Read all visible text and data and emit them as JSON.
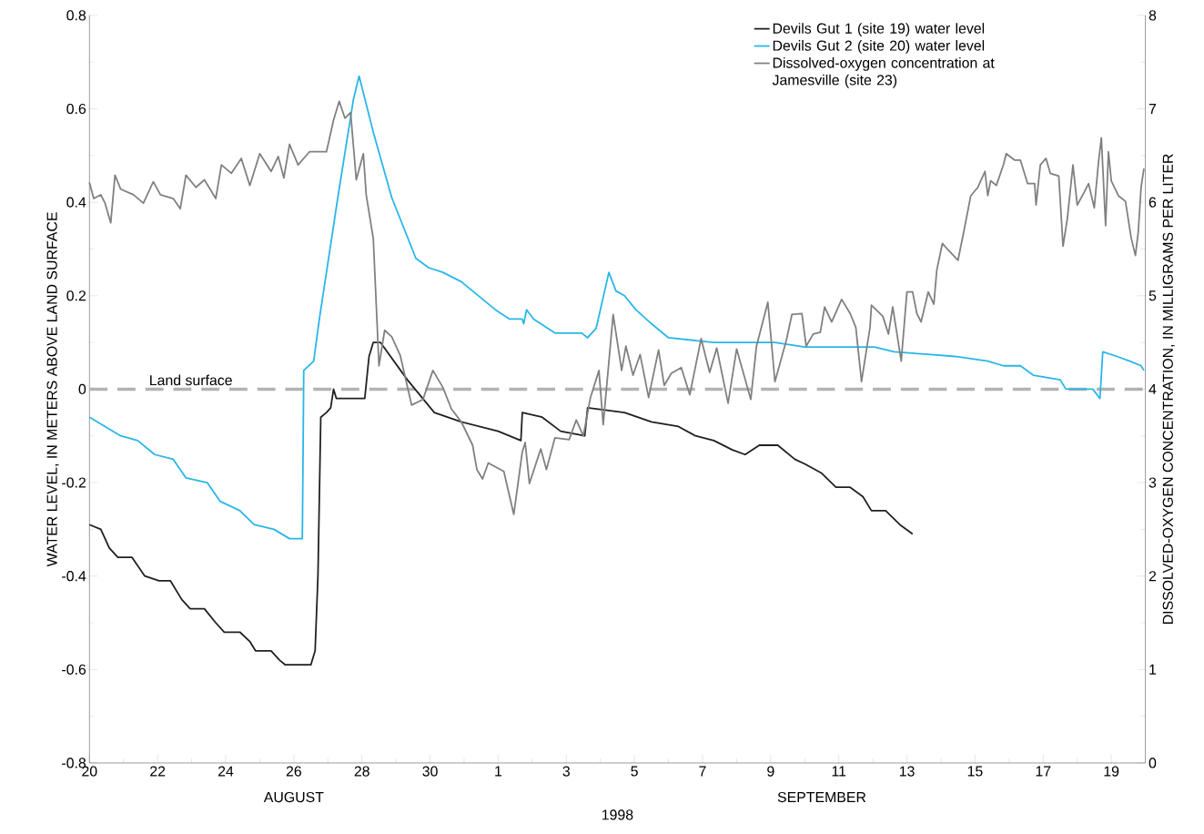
{
  "chart_data": {
    "type": "line",
    "xlabel": "1998",
    "ylabel": "WATER LEVEL, IN METERS ABOVE LAND SURFACE",
    "y2label": "DISSOLVED-OXYGEN CONCENTRATION, IN MILLIGRAMS PER LITER",
    "annotations": [
      "AUGUST",
      "SEPTEMBER"
    ],
    "xlim": [
      "1998-08-20",
      "1998-09-20"
    ],
    "xticks": [
      {
        "value": "1998-08-20",
        "label": "20"
      },
      {
        "value": "1998-08-22",
        "label": "22"
      },
      {
        "value": "1998-08-24",
        "label": "24"
      },
      {
        "value": "1998-08-26",
        "label": "26"
      },
      {
        "value": "1998-08-28",
        "label": "28"
      },
      {
        "value": "1998-08-30",
        "label": "30"
      },
      {
        "value": "1998-09-01",
        "label": "1"
      },
      {
        "value": "1998-09-03",
        "label": "3"
      },
      {
        "value": "1998-09-05",
        "label": "5"
      },
      {
        "value": "1998-09-07",
        "label": "7"
      },
      {
        "value": "1998-09-09",
        "label": "9"
      },
      {
        "value": "1998-09-11",
        "label": "11"
      },
      {
        "value": "1998-09-13",
        "label": "13"
      },
      {
        "value": "1998-09-15",
        "label": "15"
      },
      {
        "value": "1998-09-17",
        "label": "17"
      },
      {
        "value": "1998-09-19",
        "label": "19"
      }
    ],
    "ylim": [
      -0.8,
      0.8
    ],
    "yticks": [
      -0.8,
      -0.6,
      -0.4,
      -0.2,
      0,
      0.2,
      0.4,
      0.6,
      0.8
    ],
    "y2lim": [
      0,
      8
    ],
    "y2ticks": [
      0,
      1,
      2,
      3,
      4,
      5,
      6,
      7,
      8
    ],
    "legend": "top right",
    "marker": "none",
    "line_style": "solid",
    "ref_lines": [
      {
        "axis": "y",
        "value": 0,
        "label": "Land surface",
        "color": "#b3b3b3",
        "line_style": "dashed"
      }
    ],
    "series": [
      {
        "name": "Devils Gut 1 (site 19) water level",
        "color": "#231f20",
        "x": [
          "1998-08-20T00:00",
          "1998-08-20T08:00",
          "1998-08-20T14:00",
          "1998-08-20T20:00",
          "1998-08-21T06:00",
          "1998-08-21T15:00",
          "1998-08-22T01:00",
          "1998-08-22T09:00",
          "1998-08-22T17:00",
          "1998-08-22T23:00",
          "1998-08-23T09:00",
          "1998-08-23T17:00",
          "1998-08-23T23:00",
          "1998-08-24T10:00",
          "1998-08-24T17:00",
          "1998-08-24T21:00",
          "1998-08-25T08:00",
          "1998-08-25T14:00",
          "1998-08-25T18:00",
          "1998-08-26T07:00",
          "1998-08-26T12:00",
          "1998-08-26T15:00",
          "1998-08-26T17:00",
          "1998-08-26T19:00",
          "1998-08-26T23:00",
          "1998-08-27T02:00",
          "1998-08-27T04:00",
          "1998-08-27T06:00",
          "1998-08-27T18:00",
          "1998-08-28T02:00",
          "1998-08-28T05:00",
          "1998-08-28T08:00",
          "1998-08-28T13:00",
          "1998-08-29T08:00",
          "1998-08-30T03:00",
          "1998-08-30T22:00",
          "1998-08-31T11:00",
          "1998-09-01T00:00",
          "1998-09-01T16:00",
          "1998-09-01T17:00",
          "1998-09-02T07:00",
          "1998-09-02T20:00",
          "1998-09-03T13:00",
          "1998-09-03T15:00",
          "1998-09-04T17:00",
          "1998-09-05T12:00",
          "1998-09-06T07:00",
          "1998-09-06T19:00",
          "1998-09-07T08:00",
          "1998-09-07T21:00",
          "1998-09-08T06:00",
          "1998-09-08T16:00",
          "1998-09-09T05:00",
          "1998-09-09T17:00",
          "1998-09-10T00:00",
          "1998-09-10T12:00",
          "1998-09-10T22:00",
          "1998-09-11T08:00",
          "1998-09-11T17:00",
          "1998-09-11T23:00",
          "1998-09-12T09:00",
          "1998-09-12T19:00",
          "1998-09-13T04:00"
        ],
        "values": [
          -0.29,
          -0.3,
          -0.34,
          -0.36,
          -0.36,
          -0.4,
          -0.41,
          -0.41,
          -0.45,
          -0.47,
          -0.47,
          -0.5,
          -0.52,
          -0.52,
          -0.54,
          -0.56,
          -0.56,
          -0.58,
          -0.59,
          -0.59,
          -0.59,
          -0.56,
          -0.4,
          -0.06,
          -0.05,
          -0.04,
          0.0,
          -0.02,
          -0.02,
          -0.02,
          0.07,
          0.1,
          0.1,
          0.02,
          -0.05,
          -0.07,
          -0.08,
          -0.09,
          -0.11,
          -0.05,
          -0.06,
          -0.09,
          -0.1,
          -0.04,
          -0.05,
          -0.07,
          -0.08,
          -0.1,
          -0.11,
          -0.13,
          -0.14,
          -0.12,
          -0.12,
          -0.15,
          -0.16,
          -0.18,
          -0.21,
          -0.21,
          -0.23,
          -0.26,
          -0.26,
          -0.29,
          -0.31
        ]
      },
      {
        "name": "Devils Gut 2 (site 20) water level",
        "color": "#29b6e8",
        "x": [
          "1998-08-20T00:00",
          "1998-08-20T22:00",
          "1998-08-21T10:00",
          "1998-08-21T22:00",
          "1998-08-22T11:00",
          "1998-08-22T20:00",
          "1998-08-23T11:00",
          "1998-08-23T20:00",
          "1998-08-24T10:00",
          "1998-08-24T20:00",
          "1998-08-25T10:00",
          "1998-08-25T21:00",
          "1998-08-26T06:00",
          "1998-08-26T07:00",
          "1998-08-26T14:00",
          "1998-08-26T18:00",
          "1998-08-27T07:00",
          "1998-08-27T18:00",
          "1998-08-27T22:00",
          "1998-08-28T08:00",
          "1998-08-28T21:00",
          "1998-08-29T14:00",
          "1998-08-29T23:00",
          "1998-08-30T09:00",
          "1998-08-30T22:00",
          "1998-08-31T06:00",
          "1998-08-31T22:00",
          "1998-09-01T08:00",
          "1998-09-01T17:00",
          "1998-09-01T18:00",
          "1998-09-01T20:00",
          "1998-09-02T01:00",
          "1998-09-02T16:00",
          "1998-09-03T11:00",
          "1998-09-03T15:00",
          "1998-09-03T21:00",
          "1998-09-04T06:00",
          "1998-09-04T11:00",
          "1998-09-04T17:00",
          "1998-09-05T01:00",
          "1998-09-05T12:00",
          "1998-09-06T00:00",
          "1998-09-07T08:00",
          "1998-09-09T03:00",
          "1998-09-10T00:00",
          "1998-09-12T01:00",
          "1998-09-12T15:00",
          "1998-09-14T10:00",
          "1998-09-15T09:00",
          "1998-09-15T20:00",
          "1998-09-16T08:00",
          "1998-09-16T17:00",
          "1998-09-17T12:00",
          "1998-09-17T16:00",
          "1998-09-18T11:00",
          "1998-09-18T16:00",
          "1998-09-18T18:00",
          "1998-09-19T04:00",
          "1998-09-19T13:00",
          "1998-09-19T21:00",
          "1998-09-19T23:00"
        ],
        "values": [
          -0.06,
          -0.1,
          -0.11,
          -0.14,
          -0.15,
          -0.19,
          -0.2,
          -0.24,
          -0.26,
          -0.29,
          -0.3,
          -0.32,
          -0.32,
          0.04,
          0.06,
          0.15,
          0.41,
          0.62,
          0.67,
          0.55,
          0.41,
          0.28,
          0.26,
          0.25,
          0.23,
          0.21,
          0.17,
          0.15,
          0.15,
          0.14,
          0.17,
          0.15,
          0.12,
          0.12,
          0.11,
          0.13,
          0.25,
          0.21,
          0.2,
          0.17,
          0.14,
          0.11,
          0.1,
          0.1,
          0.09,
          0.09,
          0.08,
          0.07,
          0.06,
          0.05,
          0.05,
          0.03,
          0.02,
          0.0,
          0.0,
          -0.02,
          0.08,
          0.07,
          0.06,
          0.05,
          0.04
        ]
      },
      {
        "name": "Dissolved-oxygen concentration at Jamesville (site 23)",
        "color": "#808080",
        "axis": "y2",
        "x": [
          "1998-08-20T00:00",
          "1998-08-20T03:00",
          "1998-08-20T08:00",
          "1998-08-20T11:00",
          "1998-08-20T15:00",
          "1998-08-20T18:00",
          "1998-08-20T22:00",
          "1998-08-21T07:00",
          "1998-08-21T14:00",
          "1998-08-21T21:00",
          "1998-08-22T02:00",
          "1998-08-22T11:00",
          "1998-08-22T16:00",
          "1998-08-22T20:00",
          "1998-08-23T03:00",
          "1998-08-23T09:00",
          "1998-08-23T17:00",
          "1998-08-23T21:00",
          "1998-08-24T04:00",
          "1998-08-24T11:00",
          "1998-08-24T17:00",
          "1998-08-25T00:00",
          "1998-08-25T08:00",
          "1998-08-25T13:00",
          "1998-08-25T17:00",
          "1998-08-25T21:00",
          "1998-08-26T03:00",
          "1998-08-26T11:00",
          "1998-08-26T23:00",
          "1998-08-27T04:00",
          "1998-08-27T08:00",
          "1998-08-27T12:00",
          "1998-08-27T16:00",
          "1998-08-27T20:00",
          "1998-08-28T01:00",
          "1998-08-28T03:00",
          "1998-08-28T08:00",
          "1998-08-28T12:00",
          "1998-08-28T16:00",
          "1998-08-28T21:00",
          "1998-08-29T03:00",
          "1998-08-29T11:00",
          "1998-08-29T19:00",
          "1998-08-30T02:00",
          "1998-08-30T09:00",
          "1998-08-30T15:00",
          "1998-08-30T22:00",
          "1998-08-31T06:00",
          "1998-08-31T09:00",
          "1998-08-31T13:00",
          "1998-08-31T17:00",
          "1998-09-01T04:00",
          "1998-09-01T07:00",
          "1998-09-01T11:00",
          "1998-09-01T17:00",
          "1998-09-01T19:00",
          "1998-09-01T22:00",
          "1998-09-02T06:00",
          "1998-09-02T10:00",
          "1998-09-02T16:00",
          "1998-09-03T02:00",
          "1998-09-03T07:00",
          "1998-09-03T12:00",
          "1998-09-03T17:00",
          "1998-09-03T23:00",
          "1998-09-04T02:00",
          "1998-09-04T09:00",
          "1998-09-04T15:00",
          "1998-09-04T18:00",
          "1998-09-04T23:00",
          "1998-09-05T04:00",
          "1998-09-05T10:00",
          "1998-09-05T17:00",
          "1998-09-05T21:00",
          "1998-09-06T02:00",
          "1998-09-06T09:00",
          "1998-09-06T15:00",
          "1998-09-06T23:00",
          "1998-09-07T05:00",
          "1998-09-07T10:00",
          "1998-09-07T18:00",
          "1998-09-08T00:00",
          "1998-09-08T10:00",
          "1998-09-08T14:00",
          "1998-09-08T22:00",
          "1998-09-09T03:00",
          "1998-09-09T11:00",
          "1998-09-09T15:00",
          "1998-09-09T22:00",
          "1998-09-10T01:00",
          "1998-09-10T06:00",
          "1998-09-10T11:00",
          "1998-09-10T14:00",
          "1998-09-10T19:00",
          "1998-09-11T02:00",
          "1998-09-11T08:00",
          "1998-09-11T12:00",
          "1998-09-11T16:00",
          "1998-09-11T22:00",
          "1998-09-11T23:00",
          "1998-09-12T07:00",
          "1998-09-12T11:00",
          "1998-09-12T14:00",
          "1998-09-12T20:00",
          "1998-09-13T00:00",
          "1998-09-13T04:00",
          "1998-09-13T07:00",
          "1998-09-13T10:00",
          "1998-09-13T15:00",
          "1998-09-13T19:00",
          "1998-09-13T21:00",
          "1998-09-14T01:00",
          "1998-09-14T05:00",
          "1998-09-14T12:00",
          "1998-09-14T16:00",
          "1998-09-14T21:00",
          "1998-09-15T02:00",
          "1998-09-15T07:00",
          "1998-09-15T09:00",
          "1998-09-15T11:00",
          "1998-09-15T15:00",
          "1998-09-15T20:00",
          "1998-09-15T22:00",
          "1998-09-16T04:00",
          "1998-09-16T08:00",
          "1998-09-16T13:00",
          "1998-09-16T18:00",
          "1998-09-16T19:00",
          "1998-09-16T22:00",
          "1998-09-17T02:00",
          "1998-09-17T05:00",
          "1998-09-17T11:00",
          "1998-09-17T14:00",
          "1998-09-17T17:00",
          "1998-09-17T21:00",
          "1998-09-18T00:00",
          "1998-09-18T05:00",
          "1998-09-18T08:00",
          "1998-09-18T12:00",
          "1998-09-18T15:00",
          "1998-09-18T17:00",
          "1998-09-18T20:00",
          "1998-09-18T22:00",
          "1998-09-19T00:00",
          "1998-09-19T05:00",
          "1998-09-19T10:00",
          "1998-09-19T14:00",
          "1998-09-19T17:00",
          "1998-09-19T19:00",
          "1998-09-19T21:00",
          "1998-09-19T23:00"
        ],
        "values": [
          6.21,
          6.04,
          6.08,
          5.99,
          5.78,
          6.29,
          6.14,
          6.08,
          5.99,
          6.22,
          6.08,
          6.04,
          5.93,
          6.29,
          6.16,
          6.24,
          6.04,
          6.4,
          6.31,
          6.47,
          6.18,
          6.52,
          6.33,
          6.49,
          6.26,
          6.62,
          6.4,
          6.54,
          6.54,
          6.88,
          7.08,
          6.9,
          6.96,
          6.24,
          6.52,
          6.08,
          5.61,
          4.25,
          4.63,
          4.56,
          4.36,
          3.83,
          3.89,
          4.2,
          4.02,
          3.79,
          3.65,
          3.4,
          3.14,
          3.04,
          3.21,
          3.12,
          2.92,
          2.66,
          3.33,
          3.43,
          2.99,
          3.36,
          3.14,
          3.48,
          3.46,
          3.67,
          3.5,
          3.91,
          4.2,
          3.62,
          4.8,
          4.2,
          4.46,
          4.15,
          4.37,
          3.91,
          4.42,
          4.04,
          4.17,
          4.23,
          3.94,
          4.54,
          4.18,
          4.44,
          3.85,
          4.43,
          3.89,
          4.46,
          4.93,
          4.08,
          4.52,
          4.8,
          4.81,
          4.46,
          4.59,
          4.61,
          4.88,
          4.72,
          4.96,
          4.81,
          4.66,
          4.08,
          4.66,
          4.9,
          4.78,
          4.59,
          4.88,
          4.3,
          5.04,
          5.04,
          4.81,
          4.72,
          5.04,
          4.91,
          5.27,
          5.56,
          5.49,
          5.38,
          5.68,
          6.07,
          6.16,
          6.33,
          6.07,
          6.23,
          6.18,
          6.4,
          6.52,
          6.45,
          6.45,
          6.2,
          6.2,
          5.97,
          6.4,
          6.47,
          6.31,
          6.28,
          5.53,
          5.82,
          6.4,
          5.97,
          6.11,
          6.2,
          5.94,
          6.43,
          6.69,
          5.75,
          6.54,
          6.23,
          6.07,
          6.01,
          5.62,
          5.43,
          5.68,
          6.16,
          6.36
        ]
      }
    ]
  }
}
